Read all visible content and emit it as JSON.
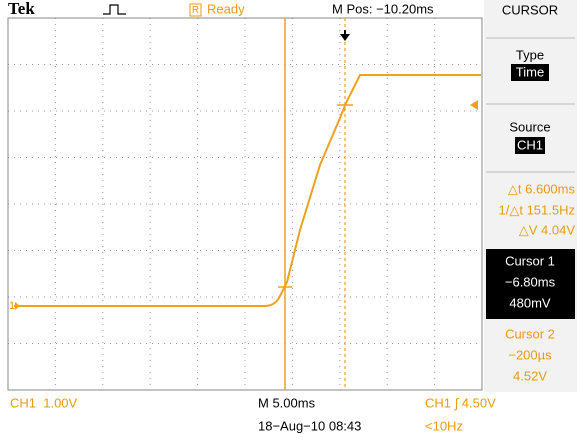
{
  "header": {
    "brand": "Tek",
    "trigger_badge": "R",
    "trigger_state": "Ready",
    "m_pos": "M Pos: −10.20ms"
  },
  "channel_marker": "1",
  "menu": {
    "title": "CURSOR",
    "type_label": "Type",
    "type_value": "Time",
    "source_label": "Source",
    "source_value": "CH1",
    "readouts": [
      "△t 6.600ms",
      "1/△t 151.5Hz",
      "△V 4.04V"
    ],
    "cursor1": {
      "label": "Cursor 1",
      "time": "−6.80ms",
      "voltage": "480mV"
    },
    "cursor2": {
      "label": "Cursor 2",
      "time": "−200µs",
      "voltage": "4.52V"
    }
  },
  "footer": {
    "ch1_scale": "CH1  1.00V",
    "timebase": "M 5.00ms",
    "trigger": "CH1 ∫ 4.50V",
    "date": "18−Aug−10 08:43",
    "frequency": "<10Hz"
  }
}
